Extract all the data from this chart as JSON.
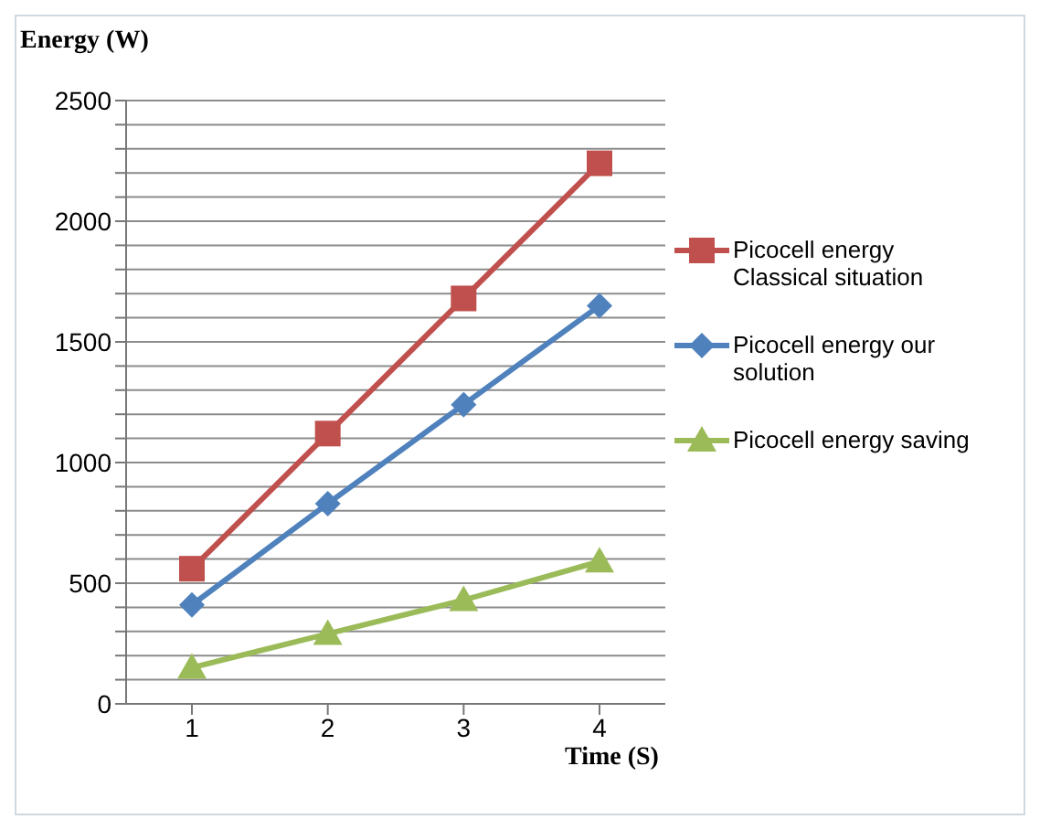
{
  "chart_data": {
    "type": "line",
    "xlabel": "Time (S)",
    "ylabel": "Energy (W)",
    "categories": [
      "1",
      "2",
      "3",
      "4"
    ],
    "series": [
      {
        "name": "Picocell energy Classical situation",
        "color": "#c0504d",
        "marker": "square",
        "values": [
          560,
          1120,
          1680,
          2240
        ]
      },
      {
        "name": "Picocell energy our solution",
        "color": "#4f81bd",
        "marker": "diamond",
        "values": [
          410,
          830,
          1240,
          1650
        ]
      },
      {
        "name": "Picocell energy saving",
        "color": "#9bbb59",
        "marker": "triangle",
        "values": [
          150,
          290,
          430,
          590
        ]
      }
    ],
    "ylim": [
      0,
      2500
    ],
    "yticks": [
      0,
      {
        "value": 100,
        "label": null
      },
      {
        "value": 200,
        "label": null
      },
      {
        "value": 300,
        "label": null
      },
      {
        "value": 400,
        "label": null
      },
      500,
      {
        "value": 600,
        "label": null
      },
      {
        "value": 700,
        "label": null
      },
      {
        "value": 800,
        "label": null
      },
      {
        "value": 900,
        "label": null
      },
      1000,
      {
        "value": 1100,
        "label": null
      },
      {
        "value": 1200,
        "label": null
      },
      {
        "value": 1300,
        "label": null
      },
      {
        "value": 1400,
        "label": null
      },
      1500,
      {
        "value": 1600,
        "label": null
      },
      {
        "value": 1700,
        "label": null
      },
      {
        "value": 1800,
        "label": null
      },
      {
        "value": 1900,
        "label": null
      },
      2000,
      {
        "value": 2100,
        "label": null
      },
      {
        "value": 2200,
        "label": null
      },
      {
        "value": 2300,
        "label": null
      },
      {
        "value": 2400,
        "label": null
      },
      2500
    ],
    "grid": "y",
    "legend": "right"
  }
}
